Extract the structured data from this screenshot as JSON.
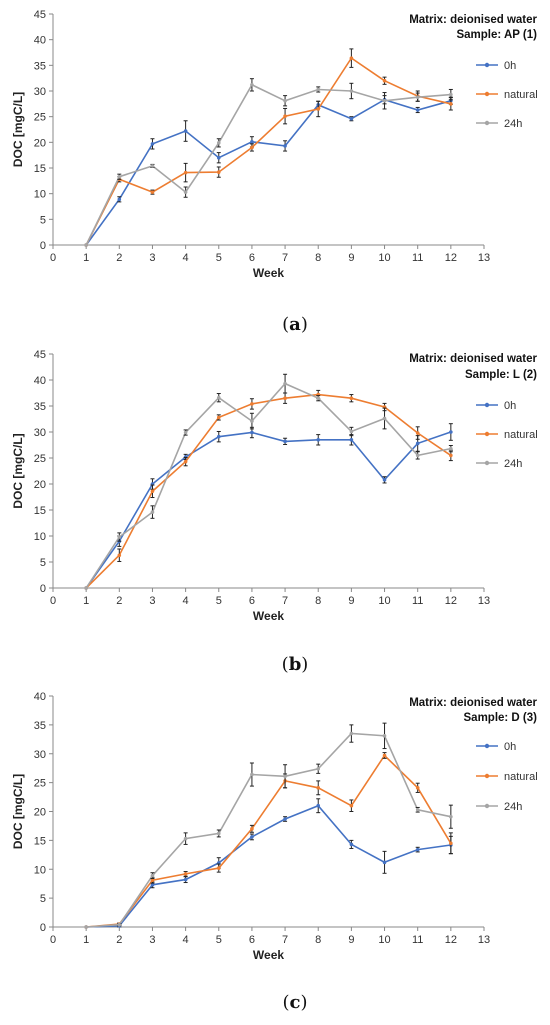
{
  "chart_data": [
    {
      "type": "line",
      "panel": "(a)",
      "caption_letter": "a",
      "annotation": [
        "Matrix: deionised water",
        "Sample: AP (1)"
      ],
      "xlabel": "Week",
      "ylabel": "DOC [mgC/L]",
      "xlim": [
        0,
        13
      ],
      "ylim": [
        0,
        45
      ],
      "xticks": [
        0,
        1,
        2,
        3,
        4,
        5,
        6,
        7,
        8,
        9,
        10,
        11,
        12,
        13
      ],
      "yticks": [
        0,
        5,
        10,
        15,
        20,
        25,
        30,
        35,
        40,
        45
      ],
      "legend_position": "right",
      "x": [
        1,
        2,
        3,
        4,
        5,
        6,
        7,
        8,
        9,
        10,
        11,
        12
      ],
      "series": [
        {
          "name": "0h",
          "color": "#4472c4",
          "values": [
            0,
            8.9,
            19.7,
            22.2,
            17.0,
            20.1,
            19.3,
            27.3,
            24.6,
            28.3,
            26.3,
            28.1
          ],
          "errors": [
            0,
            0.5,
            1.0,
            2.0,
            1.0,
            1.0,
            1.0,
            0.7,
            0.4,
            0.8,
            0.5,
            0.7
          ]
        },
        {
          "name": "natural",
          "color": "#ed7d31",
          "values": [
            0,
            12.8,
            10.3,
            14.1,
            14.2,
            19.0,
            25.1,
            26.5,
            36.4,
            32.0,
            29.0,
            27.5
          ],
          "errors": [
            0,
            0.5,
            0.4,
            1.8,
            1.0,
            0.7,
            1.5,
            1.5,
            1.8,
            0.7,
            1.0,
            1.2
          ]
        },
        {
          "name": "24h",
          "color": "#a5a5a5",
          "values": [
            0,
            13.3,
            15.4,
            10.3,
            19.9,
            31.2,
            28.1,
            30.3,
            30.0,
            28.1,
            28.8,
            29.3
          ],
          "errors": [
            0,
            0.5,
            0.3,
            1.0,
            0.8,
            1.2,
            1.0,
            0.5,
            1.5,
            1.6,
            0.8,
            1.0
          ]
        }
      ]
    },
    {
      "type": "line",
      "panel": "(b)",
      "caption_letter": "b",
      "annotation": [
        "Matrix: deionised water",
        "Sample: L (2)"
      ],
      "xlabel": "Week",
      "ylabel": "DOC [mgC/L]",
      "xlim": [
        0,
        13
      ],
      "ylim": [
        0,
        45
      ],
      "xticks": [
        0,
        1,
        2,
        3,
        4,
        5,
        6,
        7,
        8,
        9,
        10,
        11,
        12,
        13
      ],
      "yticks": [
        0,
        5,
        10,
        15,
        20,
        25,
        30,
        35,
        40,
        45
      ],
      "legend_position": "right",
      "x": [
        1,
        2,
        3,
        4,
        5,
        6,
        7,
        8,
        9,
        10,
        11,
        12
      ],
      "series": [
        {
          "name": "0h",
          "color": "#4472c4",
          "values": [
            0,
            9.0,
            20.0,
            25.2,
            29.1,
            29.9,
            28.2,
            28.5,
            28.5,
            20.8,
            27.8,
            30.0
          ],
          "errors": [
            0,
            1.0,
            1.0,
            0.5,
            1.0,
            1.0,
            0.6,
            1.0,
            1.0,
            0.6,
            1.5,
            1.6
          ]
        },
        {
          "name": "natural",
          "color": "#ed7d31",
          "values": [
            0,
            6.3,
            18.6,
            24.3,
            32.8,
            35.4,
            36.5,
            37.2,
            36.5,
            34.8,
            29.8,
            25.5
          ],
          "errors": [
            0,
            1.2,
            1.2,
            0.8,
            0.5,
            1.0,
            1.0,
            0.8,
            0.7,
            0.7,
            1.2,
            1.0
          ]
        },
        {
          "name": "24h",
          "color": "#a5a5a5",
          "values": [
            0,
            9.8,
            14.6,
            29.9,
            36.6,
            32.1,
            39.3,
            36.5,
            30.1,
            32.6,
            25.5,
            26.8
          ],
          "errors": [
            0,
            0.8,
            1.2,
            0.5,
            0.8,
            1.5,
            1.8,
            0.5,
            0.8,
            2.0,
            0.7,
            0.6
          ]
        }
      ]
    },
    {
      "type": "line",
      "panel": "(c)",
      "caption_letter": "c",
      "annotation": [
        "Matrix: deionised water",
        "Sample: D (3)"
      ],
      "xlabel": "Week",
      "ylabel": "DOC [mgC/L]",
      "xlim": [
        0,
        13
      ],
      "ylim": [
        0,
        40
      ],
      "xticks": [
        0,
        1,
        2,
        3,
        4,
        5,
        6,
        7,
        8,
        9,
        10,
        11,
        12,
        13
      ],
      "yticks": [
        0,
        5,
        10,
        15,
        20,
        25,
        30,
        35,
        40
      ],
      "legend_position": "right",
      "x": [
        1,
        2,
        3,
        4,
        5,
        6,
        7,
        8,
        9,
        10,
        11,
        12
      ],
      "series": [
        {
          "name": "0h",
          "color": "#4472c4",
          "values": [
            0,
            0.2,
            7.3,
            8.2,
            11.1,
            15.6,
            18.7,
            21.0,
            14.3,
            11.2,
            13.4,
            14.2
          ],
          "errors": [
            0,
            0.2,
            0.5,
            0.5,
            0.9,
            0.5,
            0.4,
            1.2,
            0.7,
            1.9,
            0.4,
            1.5
          ]
        },
        {
          "name": "natural",
          "color": "#ed7d31",
          "values": [
            0,
            0.5,
            8.1,
            9.2,
            10.2,
            17.0,
            25.3,
            24.1,
            21.0,
            29.7,
            24.1,
            14.5
          ],
          "errors": [
            0,
            0.2,
            0.5,
            0.4,
            0.7,
            0.6,
            1.2,
            1.2,
            1.0,
            0.5,
            0.8,
            1.8
          ]
        },
        {
          "name": "24h",
          "color": "#a5a5a5",
          "values": [
            0,
            0.4,
            8.9,
            15.3,
            16.2,
            26.4,
            26.1,
            27.4,
            33.5,
            33.1,
            20.3,
            19.1
          ],
          "errors": [
            0,
            0.2,
            0.5,
            1.0,
            0.6,
            2.0,
            2.0,
            0.8,
            1.5,
            2.2,
            0.4,
            2.0
          ]
        }
      ]
    }
  ]
}
